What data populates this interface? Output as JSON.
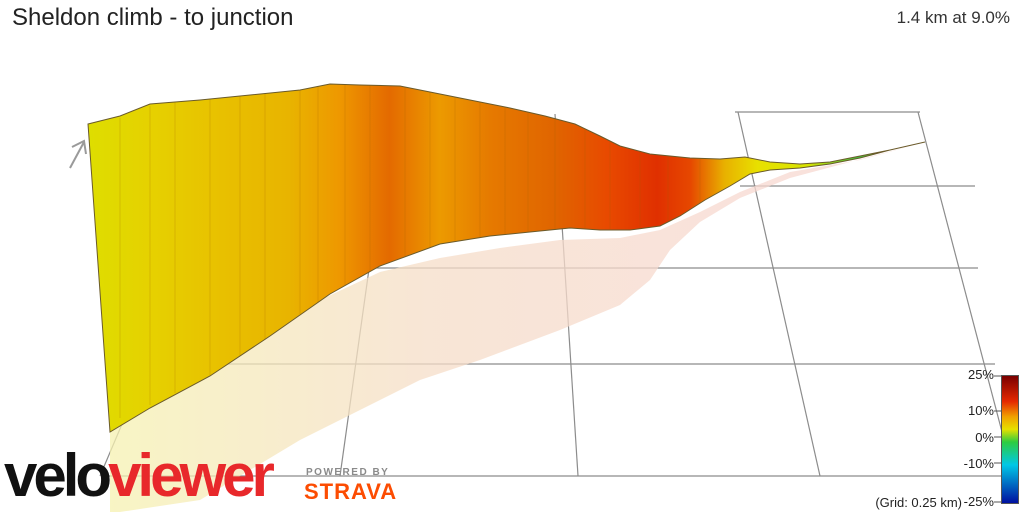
{
  "header": {
    "title": "Sheldon climb - to junction",
    "stats": "1.4 km at 9.0%"
  },
  "legend": {
    "labels": [
      "25%",
      "10%",
      "0%",
      "-10%",
      "-25%"
    ],
    "grid_note": "(Grid: 0.25 km)",
    "colors": {
      "max": "#7a0000",
      "high": "#e42800",
      "mid": "#f0a000",
      "low": "#e6e000",
      "zero": "#2ecc40",
      "neg": "#00c8e6",
      "min": "#0010a0"
    }
  },
  "branding": {
    "logo_part1": "velo",
    "logo_part2": "viewer",
    "powered_by": "POWERED BY",
    "strava": "STRAVA"
  },
  "icons": {
    "direction": "arrow-up-right-icon"
  }
}
